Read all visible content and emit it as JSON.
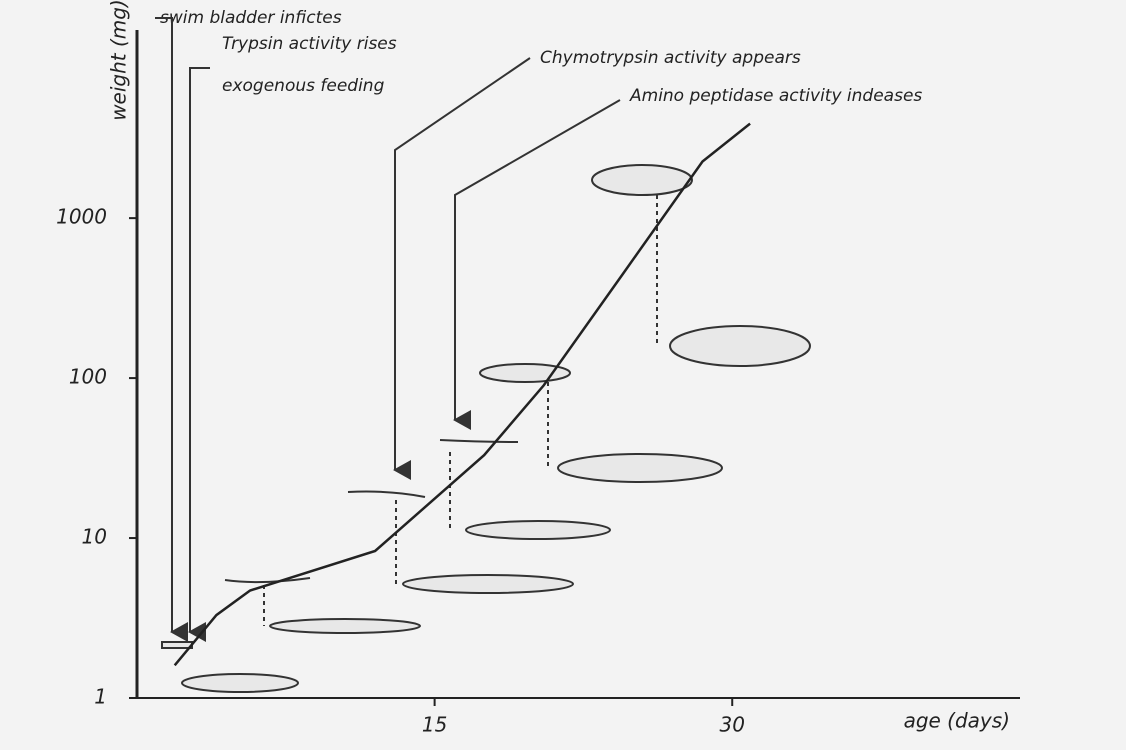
{
  "chart_data": {
    "type": "line",
    "ylabel": "weight (mg)",
    "xlabel": "age (days)",
    "x": [
      1.9,
      4,
      5.7,
      12,
      17.5,
      20.5,
      24.5,
      28.5,
      30.9
    ],
    "series": [
      {
        "color": "#222222",
        "values": [
          1.6,
          3.3,
          4.7,
          8.3,
          33,
          90,
          450,
          2260,
          3900
        ]
      }
    ],
    "xlim": [
      0,
      44
    ],
    "xticks": [
      15,
      30
    ],
    "ylim": [
      1,
      15000
    ],
    "yticks": [
      1,
      10,
      100,
      1000
    ],
    "log_y": true,
    "annotations": [
      "swim bladder infictes",
      "Trypsin activity rises",
      "exogenous feeding",
      "Chymotrypsin activity appears",
      "Amino peptidase activity indeases"
    ]
  }
}
